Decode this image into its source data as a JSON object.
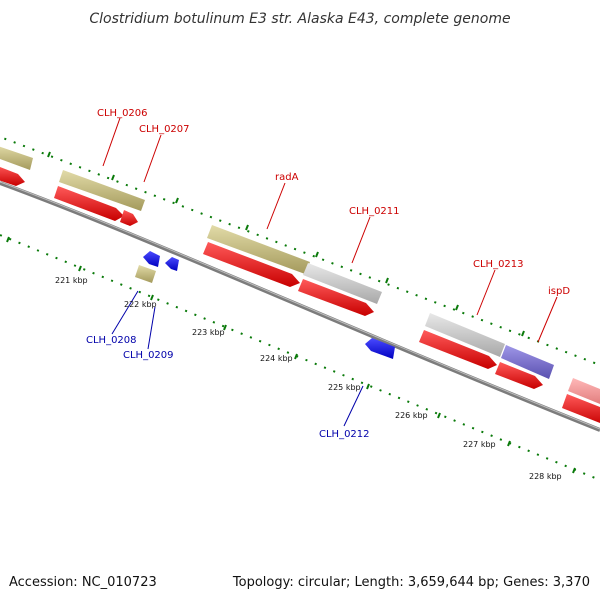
{
  "title": "Clostridium botulinum E3 str. Alaska E43, complete genome",
  "footer": {
    "accession": "Accession: NC_010723",
    "summary": "Topology: circular; Length: 3,659,644 bp; Genes: 3,370"
  },
  "colors": {
    "forward_label": "#cc0000",
    "reverse_label": "#0000aa",
    "cds": "#ff0000",
    "reverse_cds": "#0000ff",
    "category_olive": "#c7bd80",
    "category_gray": "#c8c8c8",
    "category_purple": "#7a6fd0",
    "category_pink": "#f09090",
    "backbone": "#888888",
    "ticks": "#0a7a0a"
  },
  "gene_labels": [
    {
      "id": "CLH_0206",
      "strand": "forward"
    },
    {
      "id": "CLH_0207",
      "strand": "forward"
    },
    {
      "id": "radA",
      "strand": "forward"
    },
    {
      "id": "CLH_0211",
      "strand": "forward"
    },
    {
      "id": "CLH_0213",
      "strand": "forward"
    },
    {
      "id": "ispD",
      "strand": "forward"
    },
    {
      "id": "CLH_0208",
      "strand": "reverse"
    },
    {
      "id": "CLH_0209",
      "strand": "reverse"
    },
    {
      "id": "CLH_0212",
      "strand": "reverse"
    }
  ],
  "tick_labels": [
    "221 kbp",
    "222 kbp",
    "223 kbp",
    "224 kbp",
    "225 kbp",
    "226 kbp",
    "227 kbp",
    "228 kbp"
  ]
}
